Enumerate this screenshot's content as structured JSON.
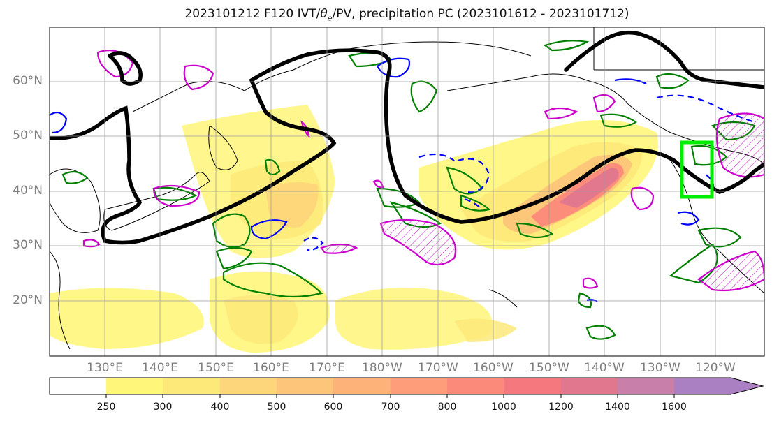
{
  "title": {
    "prefix": "2023101212 F120 IVT/",
    "theta": "θ",
    "theta_sub": "e",
    "suffix": "/PV, precipitation PC (2023101612 - 2023101712)"
  },
  "latitude_labels": [
    "60°N",
    "50°N",
    "40°N",
    "30°N",
    "20°N"
  ],
  "longitude_labels": [
    "130°E",
    "140°E",
    "150°E",
    "160°E",
    "170°E",
    "180°W",
    "170°W",
    "160°W",
    "150°W",
    "140°W",
    "130°W",
    "120°W"
  ],
  "colorbar": {
    "ticks": [
      "250",
      "300",
      "400",
      "500",
      "600",
      "700",
      "800",
      "1000",
      "1200",
      "1400",
      "1600"
    ],
    "colors": [
      "#ffffff",
      "#fff67a",
      "#fde97a",
      "#fdd57a",
      "#fdc57a",
      "#fdb27a",
      "#fd9d7a",
      "#fb8a7a",
      "#f5787f",
      "#e0778f",
      "#c880aa",
      "#ab80c2"
    ]
  },
  "colors": {
    "ivt_scale": "#fff67a to #ab80c2",
    "theta_e_contour": "#000000",
    "pv_positive": "#cc00cc",
    "pv_negative": "#0000ff",
    "precip_pc": "#008000",
    "target_box": "#00ee00",
    "coastline": "#000000"
  }
}
